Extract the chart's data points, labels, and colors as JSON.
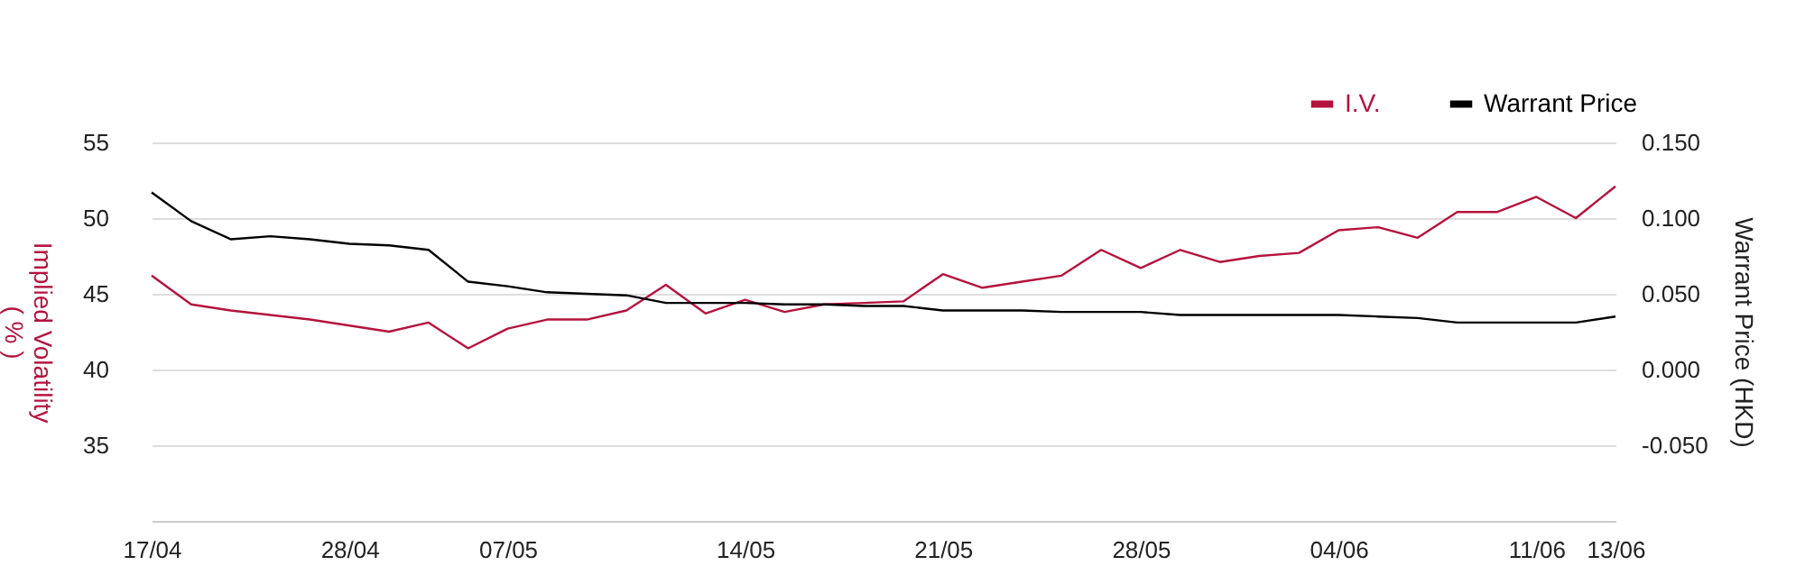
{
  "chart_data": {
    "type": "line",
    "categories": [
      "17/04",
      null,
      null,
      null,
      null,
      "28/04",
      null,
      null,
      null,
      "07/05",
      null,
      null,
      null,
      null,
      null,
      "14/05",
      null,
      null,
      null,
      null,
      "21/05",
      null,
      null,
      null,
      null,
      "28/05",
      null,
      null,
      null,
      null,
      "04/06",
      null,
      null,
      null,
      null,
      "11/06",
      null,
      "13/06"
    ],
    "series": [
      {
        "name": "I.V.",
        "color": "#b5123e",
        "values": [
          46.2,
          44.3,
          43.9,
          43.6,
          43.3,
          42.9,
          42.5,
          43.1,
          41.4,
          42.7,
          43.3,
          43.3,
          43.9,
          45.6,
          43.7,
          44.6,
          43.8,
          44.3,
          44.4,
          44.5,
          46.3,
          45.4,
          45.8,
          46.2,
          47.9,
          46.7,
          47.9,
          47.1,
          47.5,
          47.7,
          49.2,
          49.4,
          48.7,
          50.4,
          50.4,
          51.4,
          50.0,
          52.1
        ]
      },
      {
        "name": "Warrant Price",
        "color": "#000000",
        "axis": "y2",
        "values": [
          0.117,
          0.098,
          0.086,
          0.088,
          0.086,
          0.083,
          0.082,
          0.079,
          0.058,
          0.055,
          0.051,
          0.05,
          0.049,
          0.044,
          0.044,
          0.044,
          0.043,
          0.043,
          0.042,
          0.042,
          0.039,
          0.039,
          0.039,
          0.038,
          0.038,
          0.038,
          0.036,
          0.036,
          0.036,
          0.036,
          0.036,
          0.035,
          0.034,
          0.031,
          0.031,
          0.031,
          0.031,
          0.035
        ]
      }
    ],
    "ylabel": "Implied Volatility\n( % )",
    "y2label": "Warrant Price (HKD)",
    "ylim": [
      30,
      55
    ],
    "yticks": [
      35,
      40,
      45,
      50,
      55
    ],
    "y2lim": [
      -0.1,
      0.15
    ],
    "y2ticks": [
      {
        "value": -0.05,
        "label": "-0.050"
      },
      {
        "value": 0,
        "label": "0.000"
      },
      {
        "value": 0.05,
        "label": "0.050"
      },
      {
        "value": 0.1,
        "label": "0.100"
      },
      {
        "value": 0.15,
        "label": "0.150"
      }
    ],
    "grid": "y",
    "legend": "top right",
    "marker": "none",
    "line_style": "solid"
  }
}
